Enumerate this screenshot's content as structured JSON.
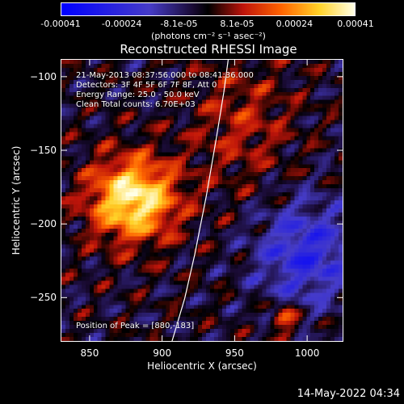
{
  "colorbar": {
    "ticks": [
      "-0.00041",
      "-0.00024",
      "-8.1e-05",
      "8.1e-05",
      "0.00024",
      "0.00041"
    ],
    "tick_values": [
      -0.00041,
      -0.00024,
      -8.1e-05,
      8.1e-05,
      0.00024,
      0.00041
    ],
    "unit": "(photons cm⁻² s⁻¹ asec⁻²)",
    "range": [
      -0.00041,
      0.00041
    ]
  },
  "chart_data": {
    "type": "heatmap",
    "title": "Reconstructed RHESSI Image",
    "xlabel": "Heliocentric X (arcsec)",
    "ylabel": "Heliocentric Y (arcsec)",
    "xlim": [
      830,
      1025
    ],
    "ylim": [
      -280,
      -88
    ],
    "x_ticks": [
      850,
      900,
      950,
      1000
    ],
    "y_ticks": [
      -100,
      -150,
      -200,
      -250
    ],
    "x_tick_labels": [
      "850",
      "900",
      "950",
      "1000"
    ],
    "y_tick_labels": [
      "−100",
      "−150",
      "−200",
      "−250"
    ],
    "peak": [
      880,
      -183
    ],
    "annotations": [
      "21-May-2013 08:37:56.000 to 08:41:36.000",
      "Detectors: 3F 4F 5F 6F 7F 8F, Att 0",
      "Energy Range: 25.0 - 50.0 keV",
      "Clean     Total counts: 6.70E+03"
    ],
    "peak_label": "Position of Peak = [880,-183]",
    "limb_curve": [
      [
        906,
        -280
      ],
      [
        915,
        -250
      ],
      [
        922,
        -220
      ],
      [
        930,
        -180
      ],
      [
        937,
        -140
      ],
      [
        942,
        -110
      ],
      [
        945,
        -88
      ]
    ]
  },
  "footer": {
    "timestamp": "14-May-2022 04:34"
  }
}
